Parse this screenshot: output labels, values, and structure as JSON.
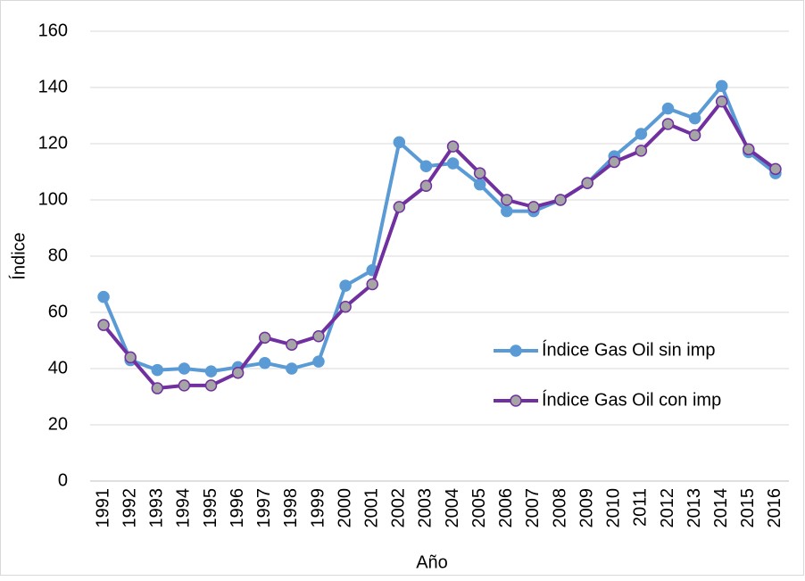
{
  "chart_data": {
    "type": "line",
    "x_label": "Año",
    "y_label": "Índice",
    "categories": [
      "1991",
      "1992",
      "1993",
      "1994",
      "1995",
      "1996",
      "1997",
      "1998",
      "1999",
      "2000",
      "2001",
      "2002",
      "2003",
      "2004",
      "2005",
      "2006",
      "2007",
      "2008",
      "2009",
      "2010",
      "2011",
      "2012",
      "2013",
      "2014",
      "2015",
      "2016"
    ],
    "series": [
      {
        "name": "Índice Gas Oil sin imp",
        "color": "#5b9bd5",
        "marker_fill": "#5b9bd5",
        "values": [
          65.5,
          43,
          39.5,
          40,
          39,
          40.5,
          42,
          40,
          42.5,
          69.5,
          75,
          120.5,
          112,
          113,
          105.5,
          96,
          96,
          100,
          106,
          115.5,
          123.5,
          132.5,
          129,
          140.5,
          117,
          109.5
        ]
      },
      {
        "name": "Índice Gas Oil con imp",
        "color": "#7030a0",
        "marker_fill": "#a5a5a5",
        "values": [
          55.5,
          44,
          33,
          34,
          34,
          38.5,
          51,
          48.5,
          51.5,
          62,
          70,
          97.5,
          105,
          119,
          109.5,
          100,
          97.5,
          100,
          106,
          113.5,
          117.5,
          127,
          123,
          135,
          118,
          111
        ]
      }
    ],
    "ylim": [
      0,
      160
    ],
    "yticks": [
      0,
      20,
      40,
      60,
      80,
      100,
      120,
      140,
      160
    ],
    "grid": true,
    "legend": "right"
  }
}
